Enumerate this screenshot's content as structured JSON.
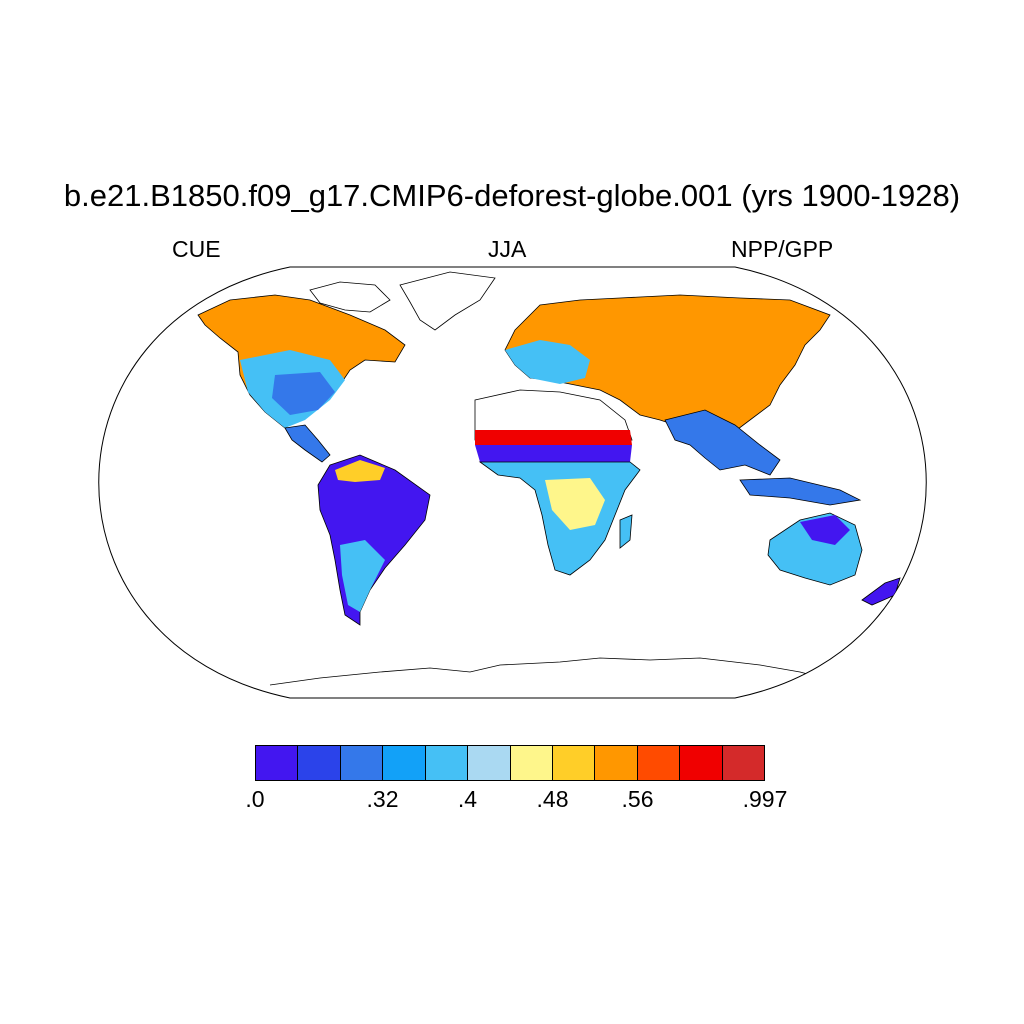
{
  "title": "b.e21.B1850.f09_g17.CMIP6-deforest-globe.001 (yrs 1900-1928)",
  "left_label": "CUE",
  "center_label": "JJA",
  "right_label": "NPP/GPP",
  "projection": "Robinson",
  "colorbar": {
    "colors": [
      "#4316f0",
      "#2b43ea",
      "#3478ea",
      "#12a1f8",
      "#45c0f5",
      "#aad9f2",
      "#fef68b",
      "#ffce28",
      "#ff9700",
      "#ff4b00",
      "#f00000",
      "#d42a2a"
    ],
    "labels": [
      {
        "text": ".0",
        "index": 0
      },
      {
        "text": ".32",
        "index": 3
      },
      {
        "text": ".4",
        "index": 5
      },
      {
        "text": ".48",
        "index": 7
      },
      {
        "text": ".56",
        "index": 9
      },
      {
        "text": ".997",
        "index": 12
      }
    ]
  }
}
